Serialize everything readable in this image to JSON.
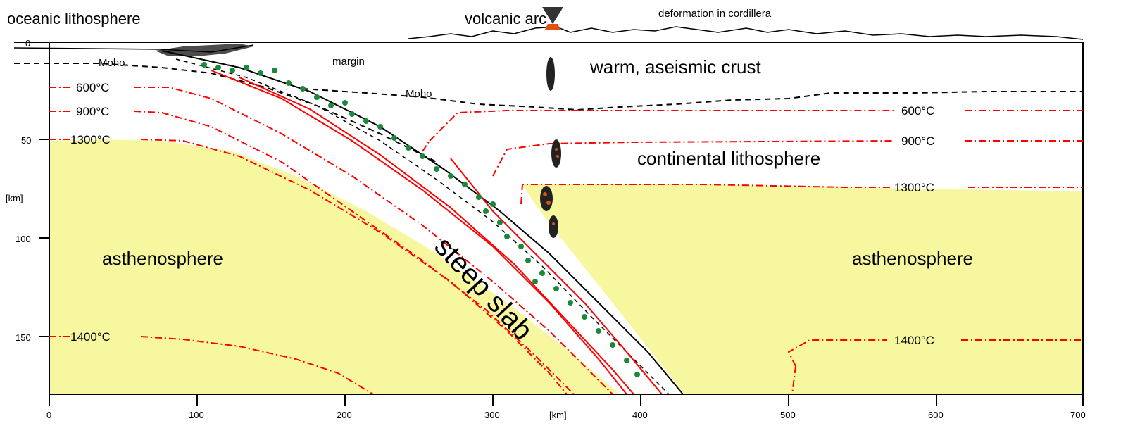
{
  "labels": {
    "oceanic_lithosphere": "oceanic lithosphere",
    "volcanic_arc": "volcanic arc",
    "deformation": "deformation in cordillera",
    "moho_left": "Moho",
    "margin": "margin",
    "moho_mid": "Moho",
    "warm_crust": "warm, aseismic crust",
    "continental_lithosphere": "continental lithosphere",
    "asthenosphere_left": "asthenosphere",
    "asthenosphere_right": "asthenosphere",
    "steep_slab": "steep slab",
    "km_x": "[km]",
    "km_y": "[km]"
  },
  "isotherms_left": [
    "600°C",
    "900°C",
    "1300°C",
    "1400°C"
  ],
  "isotherms_right": [
    "600°C",
    "900°C",
    "1300°C",
    "1400°C"
  ],
  "axes": {
    "x_ticks": [
      "0",
      "100",
      "200",
      "300",
      "400",
      "500",
      "600",
      "700"
    ],
    "y_ticks": [
      "0",
      "50",
      "100",
      "150"
    ]
  },
  "colors": {
    "asthenosphere": "#f7f7a0",
    "isotherm": "#ff0000",
    "seismicity": "#1a8a3a",
    "magma": "#e05010"
  }
}
